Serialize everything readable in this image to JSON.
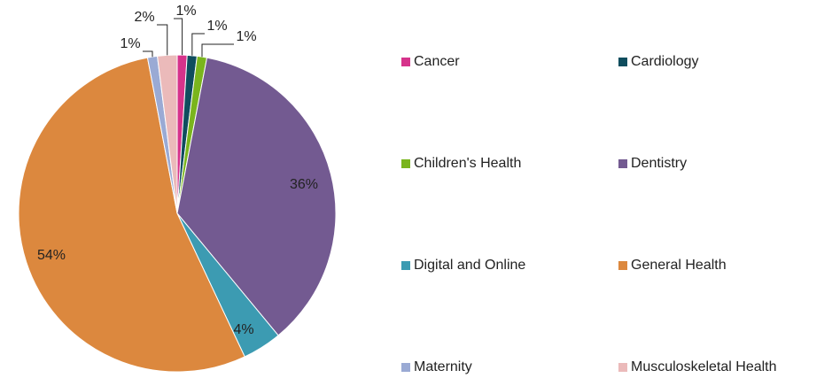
{
  "chart_data": {
    "type": "pie",
    "categories": [
      "Cancer",
      "Cardiology",
      "Children's Health",
      "Dentistry",
      "Digital and Online",
      "General Health",
      "Maternity",
      "Musculoskeletal Health"
    ],
    "values": [
      1,
      1,
      1,
      36,
      4,
      54,
      1,
      2
    ],
    "value_labels": [
      "1%",
      "1%",
      "1%",
      "36%",
      "4%",
      "54%",
      "1%",
      "2%"
    ],
    "colors": [
      "#d6338b",
      "#0f4d5e",
      "#7ab51d",
      "#735a91",
      "#3c9bb2",
      "#dc883e",
      "#9aaad4",
      "#ebbaba"
    ],
    "legend": "right"
  }
}
